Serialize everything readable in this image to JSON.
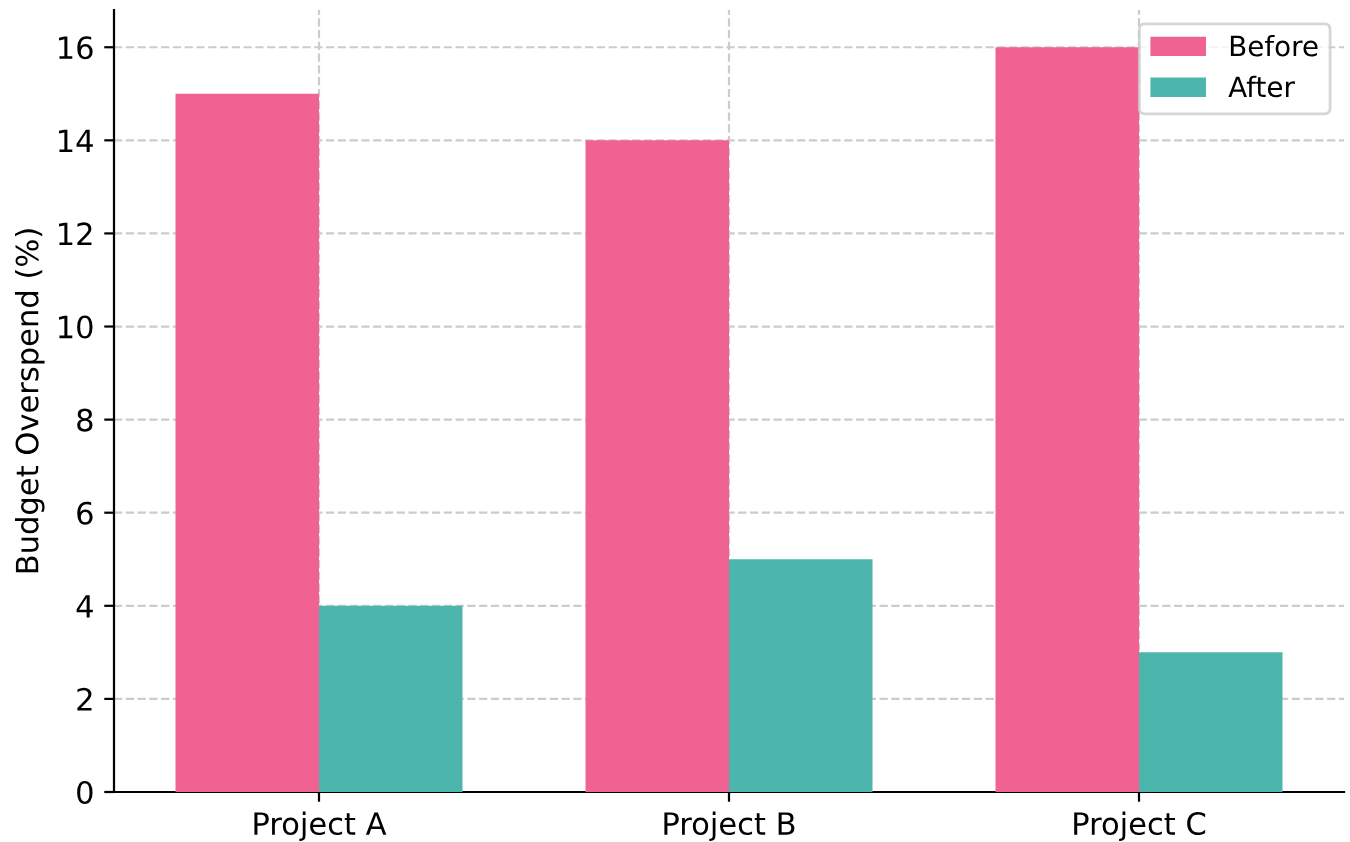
{
  "chart_data": {
    "type": "bar",
    "ylabel": "Budget Overspend (%)",
    "categories": [
      "Project A",
      "Project B",
      "Project C"
    ],
    "series": [
      {
        "name": "Before",
        "color": "#f06292",
        "values": [
          15,
          14,
          16
        ]
      },
      {
        "name": "After",
        "color": "#4db6ac",
        "values": [
          4,
          5,
          3
        ]
      }
    ],
    "ylim": [
      0,
      16.8
    ],
    "yticks": [
      0,
      2,
      4,
      6,
      8,
      10,
      12,
      14,
      16
    ],
    "grid": true,
    "legend": "top right"
  }
}
